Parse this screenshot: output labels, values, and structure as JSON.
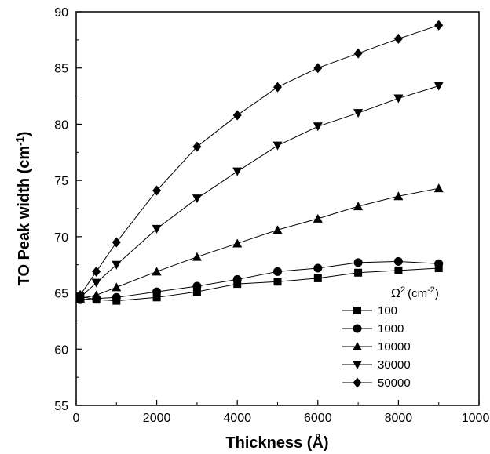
{
  "chart_data": {
    "type": "line",
    "title": "",
    "xlabel": "Thickness  (Å)",
    "ylabel": "TO Peak width (cm",
    "ylabel_sup": "-1",
    "ylabel_close": ")",
    "xlim": [
      0,
      10000
    ],
    "ylim": [
      55,
      90
    ],
    "x_ticks": [
      0,
      2000,
      4000,
      6000,
      8000,
      10000
    ],
    "y_ticks": [
      55,
      60,
      65,
      70,
      75,
      80,
      85,
      90
    ],
    "grid": false,
    "legend_position": "bottom-right",
    "legend_title": "Ω",
    "legend_title_sup": "2",
    "legend_title_unit": "(cm",
    "legend_title_unit_sup": "-2",
    "legend_title_close": ")",
    "x": [
      100,
      500,
      1000,
      2000,
      3000,
      4000,
      5000,
      6000,
      7000,
      8000,
      9000
    ],
    "series": [
      {
        "name": "100",
        "marker": "square",
        "values": [
          64.7,
          64.4,
          64.3,
          64.6,
          65.1,
          65.8,
          66.0,
          66.3,
          66.8,
          67.0,
          67.2
        ]
      },
      {
        "name": "1000",
        "marker": "circle",
        "values": [
          64.4,
          64.5,
          64.6,
          65.1,
          65.6,
          66.2,
          66.9,
          67.2,
          67.7,
          67.8,
          67.6
        ]
      },
      {
        "name": "10000",
        "marker": "triangle-up",
        "values": [
          64.5,
          64.8,
          65.5,
          66.9,
          68.2,
          69.4,
          70.6,
          71.6,
          72.7,
          73.6,
          74.3
        ]
      },
      {
        "name": "30000",
        "marker": "triangle-down",
        "values": [
          64.6,
          65.9,
          67.5,
          70.7,
          73.4,
          75.8,
          78.1,
          79.8,
          81.0,
          82.3,
          83.4
        ]
      },
      {
        "name": "50000",
        "marker": "diamond",
        "values": [
          64.8,
          66.9,
          69.5,
          74.1,
          78.0,
          80.8,
          83.3,
          85.0,
          86.3,
          87.6,
          88.8
        ]
      }
    ]
  }
}
